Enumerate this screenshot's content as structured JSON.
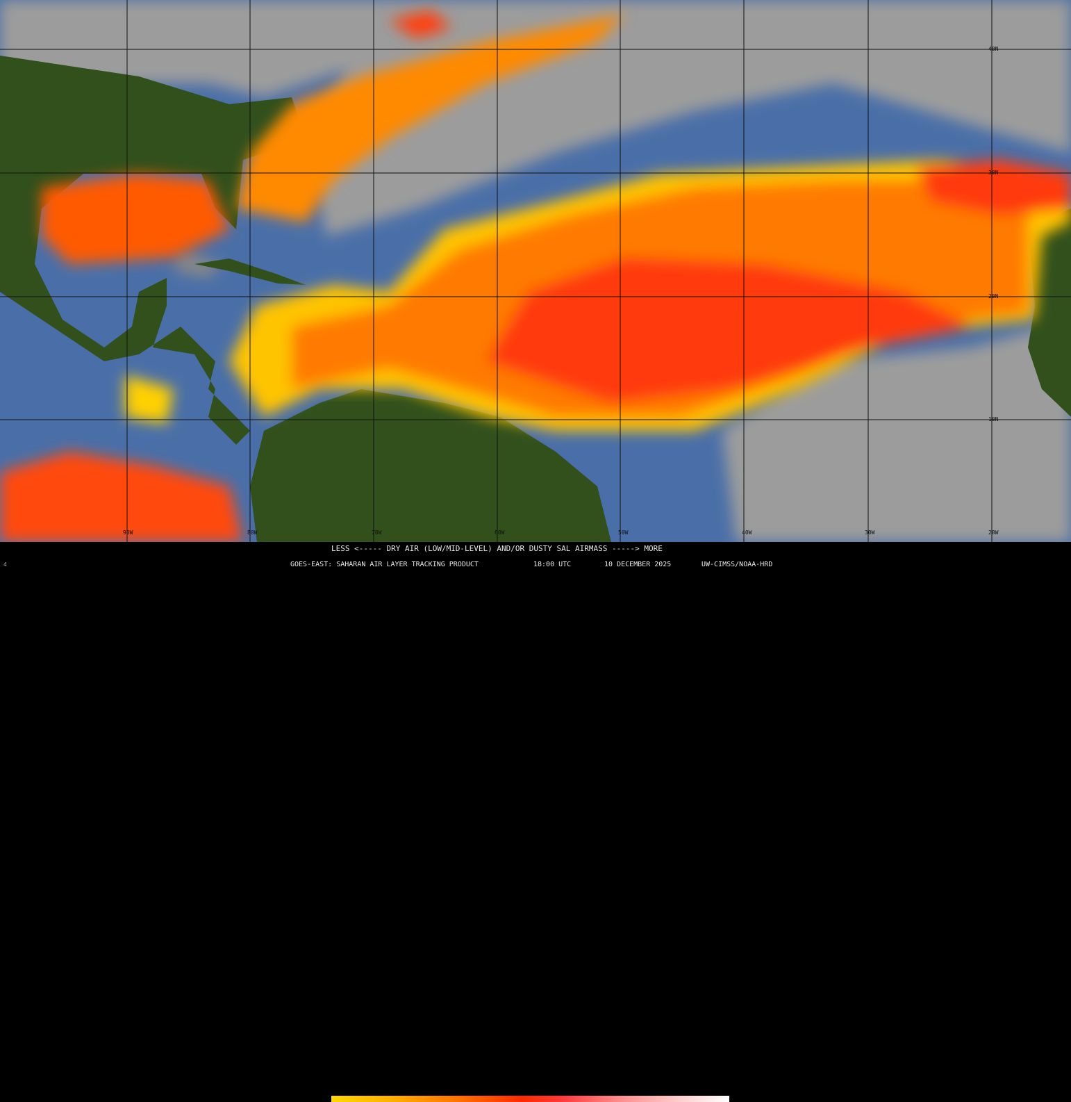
{
  "product": {
    "legend_title": "LESS <----- DRY AIR (LOW/MID-LEVEL) AND/OR DUSTY SAL AIRMASS -----> MORE",
    "satellite": "GOES-EAST: SAHARAN AIR LAYER TRACKING PRODUCT",
    "time": "18:00 UTC",
    "date": "10 DECEMBER 2025",
    "credit": "UW-CIMSS/NOAA-HRD",
    "frame_marker": "4"
  },
  "colorbar": {
    "low_label": "LESS",
    "high_label": "MORE",
    "colors": [
      "#ffd800",
      "#ff7a00",
      "#ff2a00",
      "#ff8a8a",
      "#ffffff"
    ]
  },
  "grid": {
    "longitudes": [
      "90W",
      "80W",
      "70W",
      "60W",
      "50W",
      "40W",
      "30W",
      "20W"
    ],
    "latitudes": [
      "40N",
      "30N",
      "20N",
      "10N"
    ]
  },
  "colors": {
    "ocean": "#4a6fa8",
    "land": "#2f4a18",
    "cloud": "#9a9a9a",
    "sal_low": "#ffd000",
    "sal_mid": "#ff6a00",
    "sal_high": "#ff2a10"
  }
}
